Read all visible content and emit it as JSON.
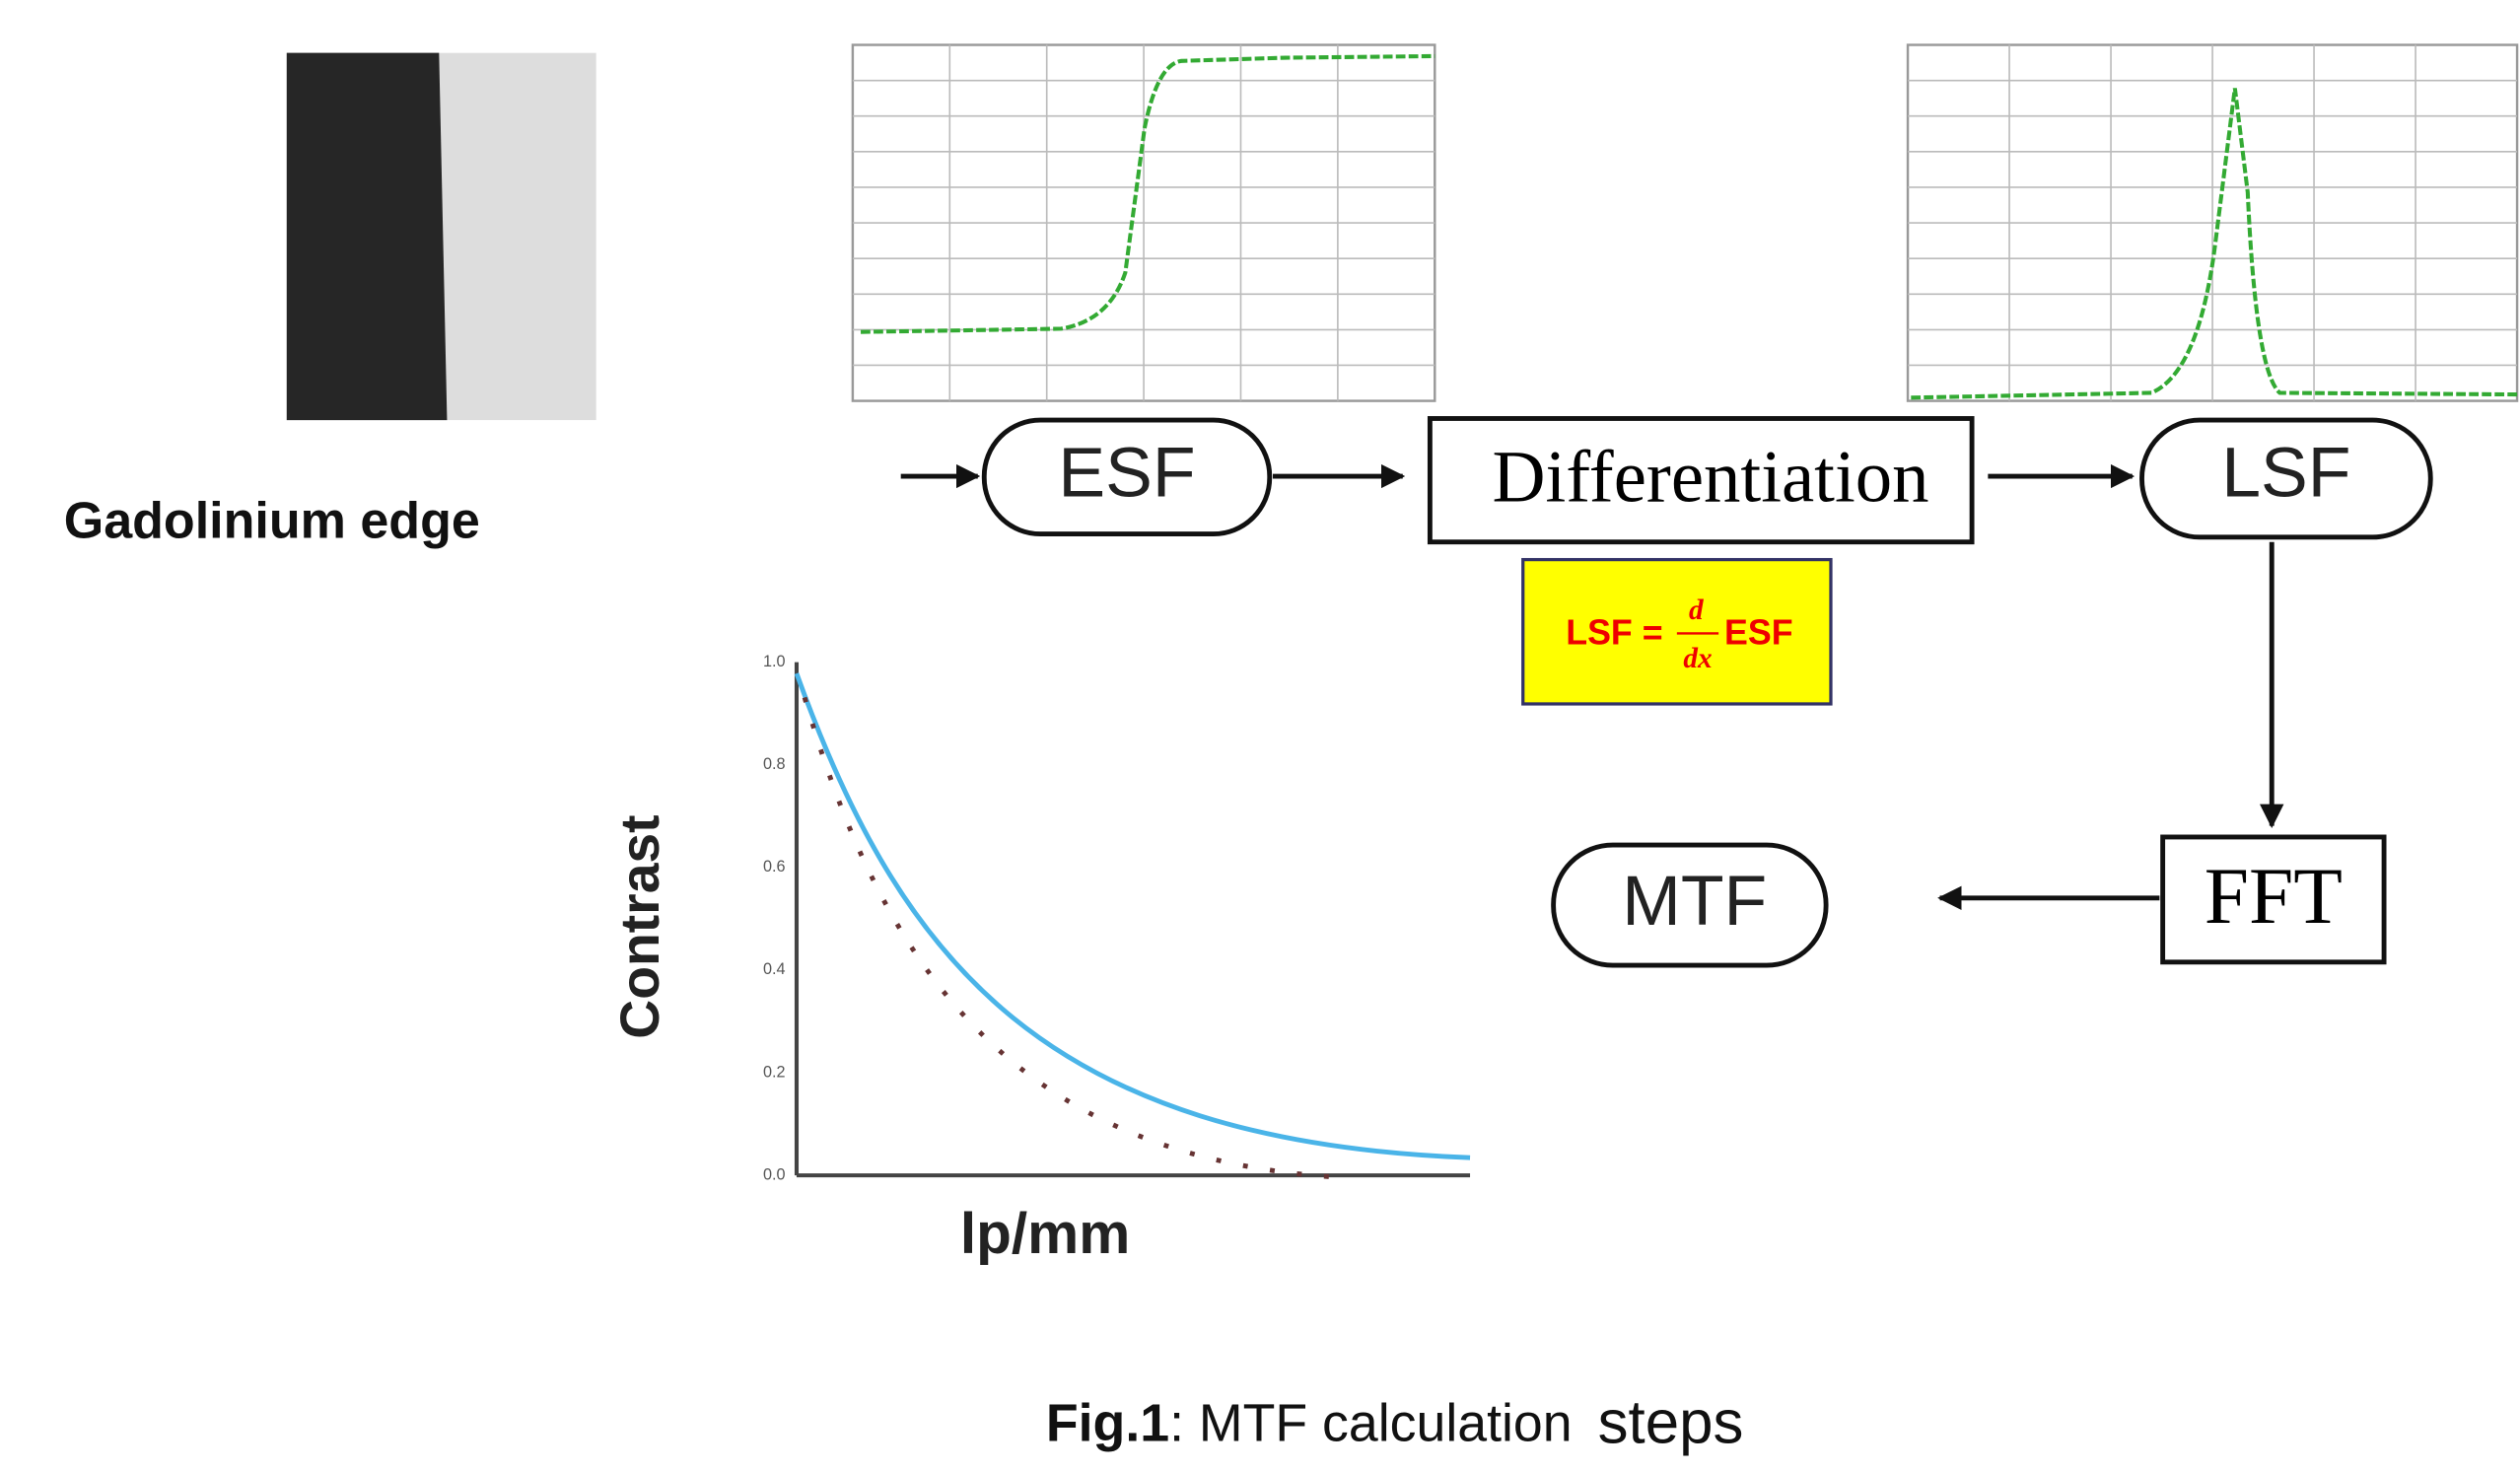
{
  "image": {
    "label": "Gadolinium edge"
  },
  "nodes": {
    "esf": "ESF",
    "differentiation": "Differentiation",
    "lsf": "LSF",
    "fft": "FFT",
    "mtf": "MTF"
  },
  "formula": {
    "lhs": "LSF =",
    "numerator": "d",
    "denominator": "dx",
    "rhs": "ESF"
  },
  "mtf_plot": {
    "y_label": "Contrast",
    "x_label": "lp/mm",
    "y_tick_labels": [
      "1.0",
      "0.8",
      "0.6",
      "0.4",
      "0.2",
      "0.0"
    ]
  },
  "caption": {
    "figure": "Fig.1",
    "text": ":  MTF calculation",
    "tail": "steps"
  }
}
